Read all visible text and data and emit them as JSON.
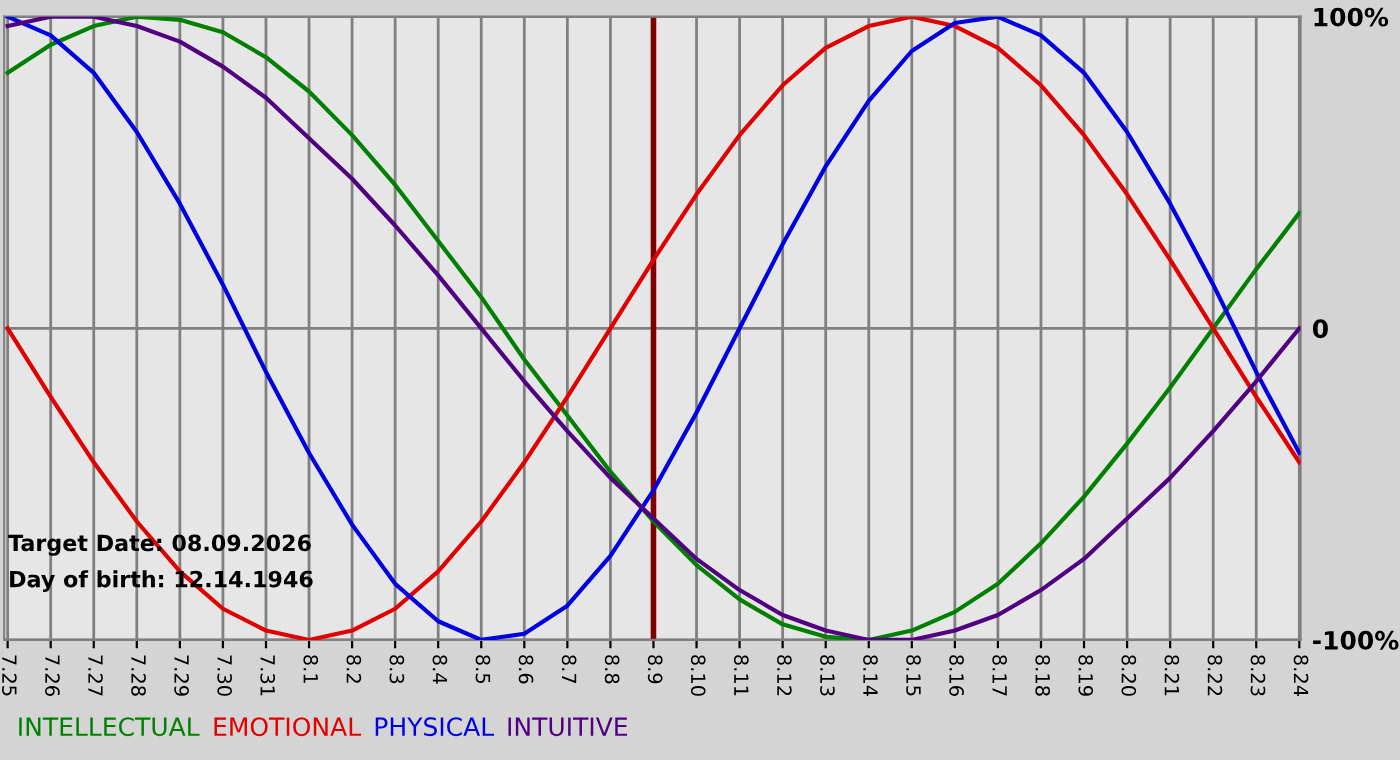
{
  "chart_data": {
    "type": "line",
    "categories": [
      "7.25",
      "7.26",
      "7.27",
      "7.28",
      "7.29",
      "7.30",
      "7.31",
      "8.1",
      "8.2",
      "8.3",
      "8.4",
      "8.5",
      "8.6",
      "8.7",
      "8.8",
      "8.9",
      "8.10",
      "8.11",
      "8.12",
      "8.13",
      "8.14",
      "8.15",
      "8.16",
      "8.17",
      "8.18",
      "8.19",
      "8.20",
      "8.21",
      "8.22",
      "8.23",
      "8.24"
    ],
    "series": [
      {
        "name": "INTELLECTUAL",
        "color": "#008000",
        "values": [
          82,
          91,
          97,
          100,
          99,
          95,
          87,
          76,
          62,
          46,
          28,
          10,
          -10,
          -28,
          -46,
          -62,
          -76,
          -87,
          -95,
          -99,
          -100,
          -97,
          -91,
          -82,
          -69,
          -54,
          -37,
          -19,
          0,
          19,
          37
        ]
      },
      {
        "name": "EMOTIONAL",
        "color": "#e00000",
        "values": [
          0,
          -22,
          -43,
          -62,
          -78,
          -90,
          -97,
          -100,
          -97,
          -90,
          -78,
          -62,
          -43,
          -22,
          0,
          22,
          43,
          62,
          78,
          90,
          97,
          100,
          97,
          90,
          78,
          62,
          43,
          22,
          0,
          -22,
          -43
        ]
      },
      {
        "name": "PHYSICAL",
        "color": "#0000e0",
        "values": [
          100,
          94,
          82,
          63,
          40,
          14,
          -14,
          -40,
          -63,
          -82,
          -94,
          -100,
          -98,
          -89,
          -73,
          -52,
          -27,
          0,
          27,
          52,
          73,
          89,
          98,
          100,
          94,
          82,
          63,
          40,
          14,
          -14,
          -40
        ]
      },
      {
        "name": "INTUITIVE",
        "color": "#500080",
        "values": [
          97,
          100,
          100,
          97,
          92,
          84,
          74,
          61,
          48,
          33,
          17,
          0,
          -17,
          -33,
          -48,
          -61,
          -74,
          -84,
          -92,
          -97,
          -100,
          -100,
          -97,
          -92,
          -84,
          -74,
          -61,
          -48,
          -33,
          -17,
          0
        ]
      }
    ],
    "ylim": [
      -100,
      100
    ],
    "yticks": [
      {
        "value": 100,
        "label": "100%"
      },
      0,
      {
        "value": -100,
        "label": "-100%"
      }
    ],
    "grid": true,
    "legend": "bottom",
    "marker": "none",
    "line_style": "solid",
    "ref_lines": [
      {
        "axis": "x",
        "value": "8.9",
        "color": "#800000"
      }
    ],
    "annotations": [
      "Target Date: 08.09.2026",
      "Day of birth: 12.14.1946"
    ]
  }
}
